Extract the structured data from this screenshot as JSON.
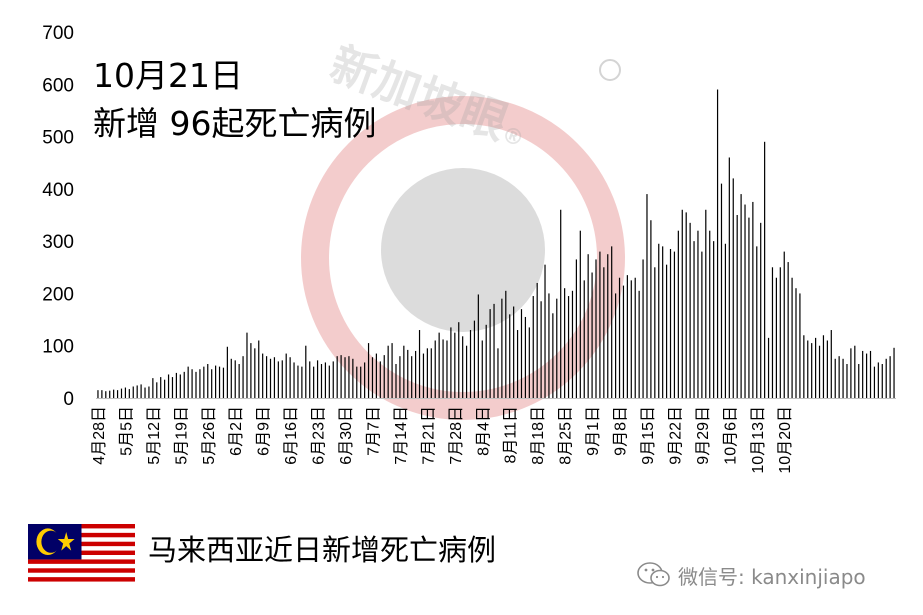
{
  "overlay": {
    "date": "10月21日",
    "subtitle": "新增 96起死亡病例"
  },
  "caption": "马来西亚近日新增死亡病例",
  "watermark": {
    "text": "新加坡眼",
    "mark": "®"
  },
  "wechat": {
    "label": "微信号: kanxinjiapo",
    "icon": "wechat-icon"
  },
  "flag": {
    "icon": "malaysia-flag",
    "colors": {
      "red": "#cc0000",
      "white": "#ffffff",
      "blue": "#010066",
      "yellow": "#ffcc00"
    }
  },
  "colors": {
    "bar": "#000000",
    "watermark_red": "#e9a3a3",
    "watermark_gray": "#9a9a9a"
  },
  "chart_data": {
    "type": "bar",
    "title": "",
    "xlabel": "",
    "ylabel": "",
    "ylim": [
      0,
      700
    ],
    "yticks": [
      0,
      100,
      200,
      300,
      400,
      500,
      600,
      700
    ],
    "grid": false,
    "legend": "none",
    "x_tick_labels": [
      "4月28日",
      "5月5日",
      "5月12日",
      "5月19日",
      "5月26日",
      "6月2日",
      "6月9日",
      "6月16日",
      "6月23日",
      "6月30日",
      "7月7日",
      "7月14日",
      "7月21日",
      "7月28日",
      "8月4日",
      "8月11日",
      "8月18日",
      "8月25日",
      "9月1日",
      "9月8日",
      "9月15日",
      "9月22日",
      "9月29日",
      "10月6日",
      "10月13日",
      "10月20日"
    ],
    "x_start": "4月28日",
    "x_end": "10月21日",
    "values": [
      15,
      15,
      13,
      14,
      16,
      15,
      18,
      20,
      17,
      22,
      24,
      26,
      20,
      22,
      38,
      30,
      40,
      35,
      45,
      40,
      48,
      45,
      50,
      60,
      55,
      50,
      55,
      60,
      65,
      55,
      62,
      60,
      58,
      98,
      75,
      72,
      65,
      80,
      125,
      105,
      95,
      110,
      85,
      80,
      75,
      78,
      70,
      72,
      85,
      78,
      68,
      62,
      60,
      100,
      70,
      60,
      72,
      65,
      68,
      62,
      70,
      80,
      82,
      78,
      80,
      75,
      60,
      60,
      68,
      105,
      78,
      85,
      70,
      82,
      100,
      105,
      65,
      80,
      100,
      92,
      80,
      90,
      130,
      85,
      95,
      95,
      110,
      125,
      112,
      110,
      135,
      125,
      145,
      118,
      100,
      130,
      148,
      198,
      110,
      140,
      170,
      180,
      95,
      190,
      205,
      160,
      175,
      130,
      170,
      155,
      135,
      195,
      220,
      185,
      255,
      200,
      162,
      190,
      360,
      210,
      195,
      205,
      265,
      320,
      225,
      275,
      240,
      265,
      280,
      250,
      275,
      290,
      200,
      230,
      215,
      235,
      225,
      230,
      205,
      265,
      390,
      340,
      250,
      295,
      290,
      255,
      285,
      280,
      320,
      360,
      355,
      335,
      300,
      320,
      280,
      360,
      320,
      300,
      590,
      410,
      295,
      460,
      420,
      350,
      390,
      370,
      345,
      375,
      290,
      335,
      490,
      115,
      250,
      230,
      250,
      280,
      260,
      230,
      210,
      200,
      120,
      110,
      105,
      115,
      100,
      120,
      110,
      130,
      75,
      80,
      75,
      65,
      95,
      100,
      65,
      90,
      85,
      90,
      60,
      68,
      65,
      75,
      80,
      96
    ]
  }
}
